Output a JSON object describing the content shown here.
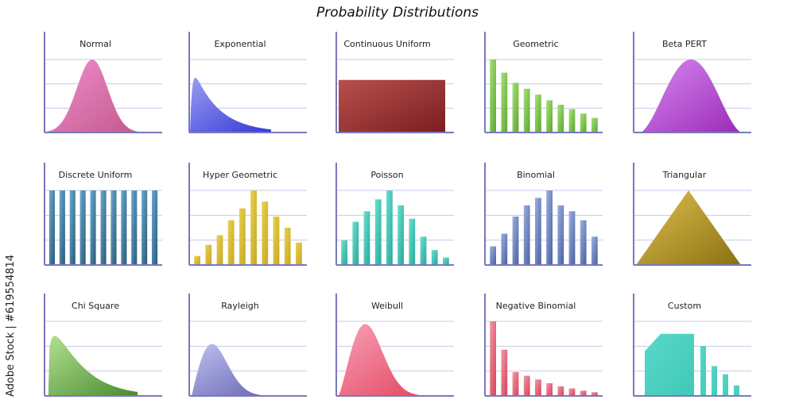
{
  "title": "Probability Distributions",
  "watermark": "Adobe Stock | #619554814",
  "chart_data": [
    {
      "name": "Normal",
      "type": "area",
      "shape": "normal",
      "colors": [
        "#f08ed0",
        "#c45a8c"
      ]
    },
    {
      "name": "Exponential",
      "type": "area",
      "shape": "exponential",
      "colors": [
        "#9a9cf0",
        "#3438d8"
      ]
    },
    {
      "name": "Continuous Uniform",
      "type": "area",
      "shape": "uniform",
      "colors": [
        "#b8504e",
        "#7a1e1e"
      ]
    },
    {
      "name": "Geometric",
      "type": "bar",
      "values": [
        1.0,
        0.82,
        0.68,
        0.6,
        0.52,
        0.44,
        0.38,
        0.32,
        0.26,
        0.2
      ],
      "colors": [
        "#a8e07a",
        "#5aa82e"
      ]
    },
    {
      "name": "Beta PERT",
      "type": "area",
      "shape": "betapert",
      "colors": [
        "#d88af0",
        "#9a2ab8"
      ]
    },
    {
      "name": "Discrete Uniform",
      "type": "bar",
      "values": [
        1,
        1,
        1,
        1,
        1,
        1,
        1,
        1,
        1,
        1,
        1
      ],
      "colors": [
        "#6aaad0",
        "#2a5a78"
      ]
    },
    {
      "name": "Hyper Geometric",
      "type": "bar",
      "values": [
        0.12,
        0.27,
        0.4,
        0.6,
        0.76,
        1.0,
        0.85,
        0.65,
        0.5,
        0.3
      ],
      "colors": [
        "#e8d050",
        "#c8a820"
      ]
    },
    {
      "name": "Poisson",
      "type": "bar",
      "values": [
        0.33,
        0.58,
        0.72,
        0.88,
        1.0,
        0.8,
        0.62,
        0.38,
        0.2,
        0.1
      ],
      "colors": [
        "#6ae0d0",
        "#2aa898"
      ]
    },
    {
      "name": "Binomial",
      "type": "bar",
      "values": [
        0.25,
        0.42,
        0.65,
        0.8,
        0.9,
        1.0,
        0.8,
        0.72,
        0.6,
        0.38
      ],
      "colors": [
        "#9ab0e0",
        "#4a60a0"
      ]
    },
    {
      "name": "Triangular",
      "type": "area",
      "shape": "triangular",
      "colors": [
        "#e0c050",
        "#8a7010"
      ]
    },
    {
      "name": "Chi Square",
      "type": "area",
      "shape": "chisquare",
      "colors": [
        "#b0e090",
        "#4a8a30"
      ]
    },
    {
      "name": "Rayleigh",
      "type": "area",
      "shape": "rayleigh",
      "colors": [
        "#c0c0f0",
        "#6060b0"
      ]
    },
    {
      "name": "Weibull",
      "type": "area",
      "shape": "weibull",
      "colors": [
        "#f8a0b8",
        "#e04058"
      ]
    },
    {
      "name": "Negative Binomial",
      "type": "bar",
      "values": [
        1.0,
        0.62,
        0.32,
        0.27,
        0.22,
        0.17,
        0.13,
        0.1,
        0.07,
        0.05
      ],
      "colors": [
        "#f09aa8",
        "#d84058"
      ]
    },
    {
      "name": "Custom",
      "type": "custom",
      "area_level": 0.98,
      "bars": [
        0.67,
        0.4,
        0.29,
        0.14
      ],
      "colors": [
        "#5ad8c8",
        "#40c8b8"
      ]
    }
  ]
}
